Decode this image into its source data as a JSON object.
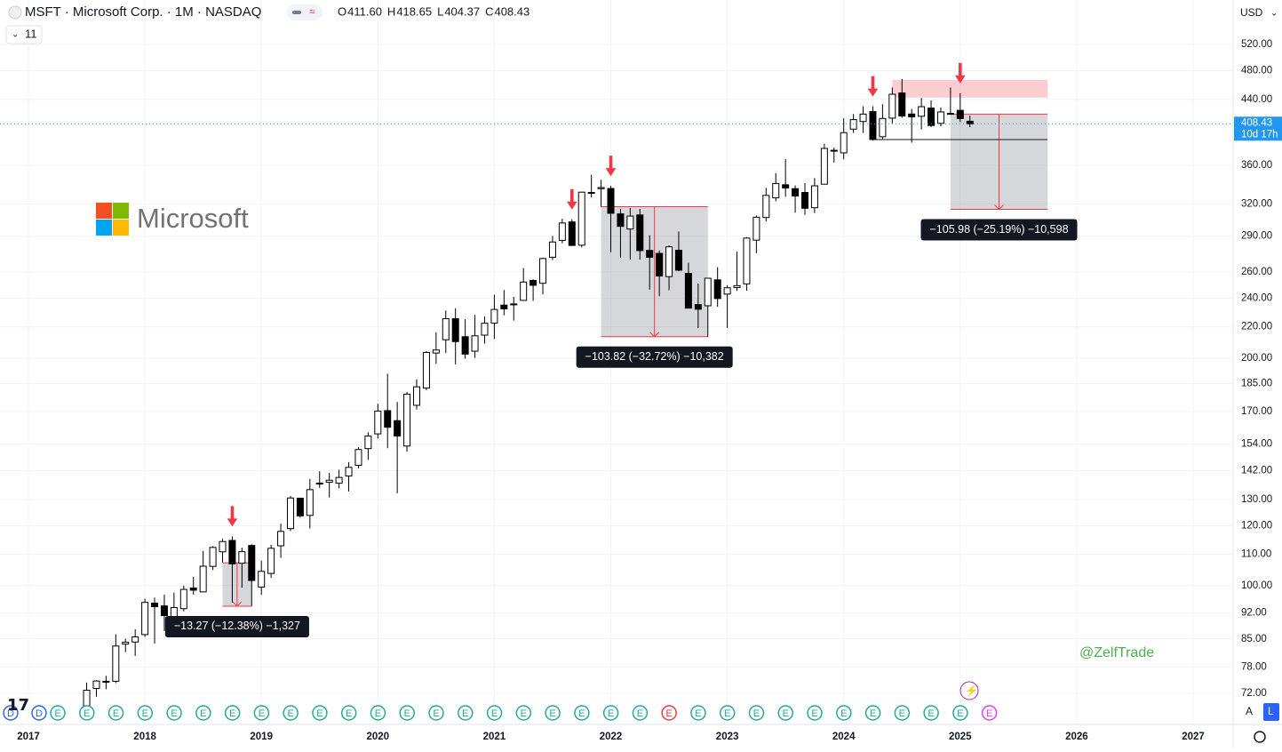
{
  "header": {
    "symbol": "MSFT · Microsoft Corp. · 1M · NASDAQ",
    "ohlc": [
      {
        "key": "O",
        "value": "411.60"
      },
      {
        "key": "H",
        "value": "418.65"
      },
      {
        "key": "L",
        "value": "404.37"
      },
      {
        "key": "C",
        "value": "408.43"
      }
    ],
    "indicators": "11",
    "currency": "USD"
  },
  "logo": "Microsoft",
  "watermark": "@ZelfTrade",
  "scale_buttons": [
    "A",
    "L"
  ],
  "chart_data": {
    "type": "candlestick",
    "log_scale": true,
    "x": [
      "2017-07",
      "2017-08",
      "2017-09",
      "2017-10",
      "2017-11",
      "2017-12",
      "2018-01",
      "2018-02",
      "2018-03",
      "2018-04",
      "2018-05",
      "2018-06",
      "2018-07",
      "2018-08",
      "2018-09",
      "2018-10",
      "2018-11",
      "2018-12",
      "2019-01",
      "2019-02",
      "2019-03",
      "2019-04",
      "2019-05",
      "2019-06",
      "2019-07",
      "2019-08",
      "2019-09",
      "2019-10",
      "2019-11",
      "2019-12",
      "2020-01",
      "2020-02",
      "2020-03",
      "2020-04",
      "2020-05",
      "2020-06",
      "2020-07",
      "2020-08",
      "2020-09",
      "2020-10",
      "2020-11",
      "2020-12",
      "2021-01",
      "2021-02",
      "2021-03",
      "2021-04",
      "2021-05",
      "2021-06",
      "2021-07",
      "2021-08",
      "2021-09",
      "2021-10",
      "2021-11",
      "2021-12",
      "2022-01",
      "2022-02",
      "2022-03",
      "2022-04",
      "2022-05",
      "2022-06",
      "2022-07",
      "2022-08",
      "2022-09",
      "2022-10",
      "2022-11",
      "2022-12",
      "2023-01",
      "2023-02",
      "2023-03",
      "2023-04",
      "2023-05",
      "2023-06",
      "2023-07",
      "2023-08",
      "2023-09",
      "2023-10",
      "2023-11",
      "2023-12",
      "2024-01",
      "2024-02",
      "2024-03",
      "2024-04",
      "2024-05",
      "2024-06",
      "2024-07",
      "2024-08",
      "2024-09",
      "2024-10",
      "2024-11",
      "2024-12",
      "2025-01",
      "2025-02"
    ],
    "open": [
      69.33,
      73.1,
      74.71,
      74.71,
      83.68,
      84.2,
      86.13,
      94.79,
      93.99,
      90.47,
      93.21,
      99.28,
      98.1,
      106.03,
      110.85,
      114.75,
      107.05,
      113.0,
      99.55,
      103.78,
      112.89,
      118.95,
      130.53,
      123.85,
      136.63,
      137,
      136.61,
      139.66,
      144.26,
      151.81,
      158.78,
      170.43,
      165.31,
      153,
      173.22,
      182.54,
      203.14,
      211.52,
      225.51,
      213.49,
      204.29,
      214.51,
      222.53,
      235.06,
      235.9,
      238.47,
      253.4,
      251.23,
      272,
      286.36,
      302.87,
      282.12,
      331.36,
      335.13,
      335.35,
      310.41,
      296.4,
      309.37,
      277.71,
      275.2,
      256.39,
      277.82,
      258.87,
      235.41,
      234.6,
      253.87,
      243.08,
      248,
      250.76,
      286.52,
      306.97,
      325.93,
      339.19,
      335.19,
      331.31,
      316.28,
      339.79,
      376.76,
      373.86,
      401.83,
      411.27,
      423.95,
      392.61,
      415.53,
      448.66,
      420.79,
      417.91,
      428.45,
      409.01,
      421.57,
      425.53,
      411.6
    ],
    "high": [
      74.42,
      74.96,
      75.97,
      86.2,
      85.06,
      87.5,
      96.07,
      96.4,
      97.24,
      97.9,
      99.99,
      102.69,
      111.15,
      112.78,
      115.29,
      116.18,
      112.24,
      113.42,
      107.9,
      113.24,
      120.82,
      131.37,
      130.65,
      138.4,
      141.68,
      140.94,
      142.37,
      145.67,
      152.5,
      159.55,
      174.05,
      190.7,
      175,
      180.4,
      187.51,
      204.4,
      216.38,
      231.15,
      232.86,
      225.21,
      228.12,
      227.18,
      242.64,
      246.13,
      241.05,
      263.19,
      254.35,
      271.65,
      290.15,
      305.84,
      305.32,
      332,
      349.67,
      344.3,
      338,
      315.12,
      315.95,
      315.11,
      290.88,
      277.69,
      282,
      294.18,
      267.45,
      251.04,
      255.33,
      263.92,
      249.83,
      276.76,
      289.27,
      308.93,
      335.94,
      351.47,
      366.78,
      338.54,
      340.86,
      346.2,
      384.3,
      379.79,
      415.32,
      420.82,
      430.82,
      430.82,
      433.6,
      456.17,
      468.35,
      427.46,
      441.85,
      438.5,
      429.32,
      456.16,
      448.38,
      418.65
    ],
    "low": [
      68.02,
      71.28,
      72.92,
      74.3,
      81.65,
      80.7,
      85.5,
      83.83,
      87.08,
      87.51,
      92.45,
      97.26,
      98.0,
      104.84,
      107.23,
      94.92,
      99.35,
      93.96,
      97.2,
      102.35,
      108.8,
      118.1,
      123.04,
      119.01,
      134.67,
      130.78,
      134.51,
      133.22,
      142.97,
      146.65,
      156.51,
      152,
      132.52,
      150.36,
      171.0,
      181.35,
      196.51,
      203.13,
      196.25,
      199.62,
      200.12,
      209.11,
      211.94,
      227.88,
      224.26,
      238.05,
      238.07,
      243,
      269.6,
      283.74,
      281.62,
      280.25,
      326.37,
      317.25,
      276.05,
      271.52,
      270,
      270,
      246.44,
      241.51,
      245.94,
      260.66,
      232.73,
      219.13,
      213.43,
      233.87,
      219.35,
      245.47,
      245.61,
      275.37,
      303.4,
      322.5,
      327,
      311.55,
      309.45,
      311.21,
      339.65,
      362.9,
      366.5,
      397.22,
      397.21,
      388.03,
      389.93,
      408.5,
      415.85,
      385.58,
      401.38,
      404.42,
      405.25,
      420.66,
      410.72,
      404.37
    ],
    "close": [
      72.7,
      74.77,
      74.49,
      83.18,
      84.17,
      85.54,
      95.01,
      93.77,
      91.27,
      93.52,
      98.84,
      98.61,
      106.08,
      112.33,
      114.37,
      106.81,
      110.89,
      101.57,
      104.43,
      112.03,
      117.94,
      130.6,
      123.68,
      133.96,
      136.27,
      137.86,
      139.03,
      143.37,
      151.38,
      157.7,
      170.23,
      162.01,
      157.71,
      179.21,
      183.25,
      203.51,
      205.01,
      225.53,
      210.33,
      202.47,
      214.07,
      222.42,
      231.96,
      232.38,
      235.77,
      252.18,
      249.68,
      270.9,
      284.91,
      301.88,
      281.92,
      331.62,
      330.59,
      336.32,
      310.98,
      298.79,
      308.31,
      277.52,
      271.87,
      256.83,
      280.74,
      261.47,
      232.9,
      232.13,
      255.14,
      239.82,
      247.81,
      249.42,
      288.3,
      307.26,
      328.39,
      340.54,
      335.92,
      327.76,
      315.75,
      338.11,
      378.91,
      376.04,
      397.58,
      413.64,
      420.72,
      389.33,
      415.13,
      446.95,
      418.35,
      417.14,
      430.3,
      406.35,
      423.46,
      421.5,
      415.06,
      408.43
    ],
    "ylim": [
      65.5,
      595.6
    ],
    "yticks": [
      {
        "value": 72,
        "label": "72.00"
      },
      {
        "value": 78,
        "label": "78.00"
      },
      {
        "value": 85,
        "label": "85.00"
      },
      {
        "value": 92,
        "label": "92.00"
      },
      {
        "value": 100,
        "label": "100.00"
      },
      {
        "value": 110,
        "label": "110.00"
      },
      {
        "value": 120,
        "label": "120.00"
      },
      {
        "value": 130,
        "label": "130.00"
      },
      {
        "value": 142,
        "label": "142.00"
      },
      {
        "value": 154,
        "label": "154.00"
      },
      {
        "value": 170,
        "label": "170.00"
      },
      {
        "value": 185,
        "label": "185.00"
      },
      {
        "value": 200,
        "label": "200.00"
      },
      {
        "value": 220,
        "label": "220.00"
      },
      {
        "value": 240,
        "label": "240.00"
      },
      {
        "value": 260,
        "label": "260.00"
      },
      {
        "value": 290,
        "label": "290.00"
      },
      {
        "value": 320,
        "label": "320.00"
      },
      {
        "value": 360,
        "label": "360.00"
      },
      {
        "value": 440,
        "label": "440.00"
      },
      {
        "value": 480,
        "label": "480.00"
      },
      {
        "value": 520,
        "label": "520.00"
      }
    ],
    "xticks": [
      "2017",
      "2018",
      "2019",
      "2020",
      "2021",
      "2022",
      "2023",
      "2024",
      "2025",
      "2026",
      "2027"
    ],
    "last_price": {
      "value": 408.43,
      "label": "408.43",
      "countdown": "10d 17h"
    },
    "signals": [
      "2018-10",
      "2021-09",
      "2022-01",
      "2024-04",
      "2025-01"
    ],
    "measures": [
      {
        "start": "2018-09",
        "end": "2018-12",
        "top": 107.19,
        "bottom": 93.92,
        "label": "−13.27 (−12.38%) −1,327"
      },
      {
        "start": "2021-12",
        "end": "2022-11",
        "top": 317.3,
        "bottom": 213.5,
        "label": "−103.82 (−32.72%) −10,382"
      },
      {
        "start": "2024-12",
        "end": "2025-10",
        "top": 420.72,
        "bottom": 314.74,
        "label": "−105.98 (−25.19%) −10,598"
      }
    ],
    "zone": {
      "start": "2024-06",
      "end": "2025-10",
      "top": 467,
      "bottom": 442.4
    },
    "level": {
      "start": "2024-04",
      "end": "2025-10",
      "value": 389.33
    }
  },
  "events": [
    {
      "label": "D",
      "color": "#2962ff"
    },
    {
      "label": "D",
      "color": "#2962ff"
    },
    {
      "label": "E",
      "color": "#22ab94"
    },
    {
      "label": "E",
      "color": "#22ab94"
    },
    {
      "label": "E",
      "color": "#22ab94"
    },
    {
      "label": "E",
      "color": "#22ab94"
    },
    {
      "label": "E",
      "color": "#22ab94"
    },
    {
      "label": "E",
      "color": "#22ab94"
    },
    {
      "label": "E",
      "color": "#22ab94"
    },
    {
      "label": "E",
      "color": "#22ab94"
    },
    {
      "label": "E",
      "color": "#22ab94"
    },
    {
      "label": "E",
      "color": "#22ab94"
    },
    {
      "label": "E",
      "color": "#22ab94"
    },
    {
      "label": "E",
      "color": "#22ab94"
    },
    {
      "label": "E",
      "color": "#22ab94"
    },
    {
      "label": "E",
      "color": "#22ab94"
    },
    {
      "label": "E",
      "color": "#22ab94"
    },
    {
      "label": "E",
      "color": "#22ab94"
    },
    {
      "label": "E",
      "color": "#22ab94"
    },
    {
      "label": "E",
      "color": "#22ab94"
    },
    {
      "label": "E",
      "color": "#22ab94"
    },
    {
      "label": "E",
      "color": "#22ab94"
    },
    {
      "label": "E",
      "color": "#22ab94"
    },
    {
      "label": "E",
      "color": "#f23645"
    },
    {
      "label": "E",
      "color": "#22ab94"
    },
    {
      "label": "E",
      "color": "#22ab94"
    },
    {
      "label": "E",
      "color": "#22ab94"
    },
    {
      "label": "E",
      "color": "#22ab94"
    },
    {
      "label": "E",
      "color": "#22ab94"
    },
    {
      "label": "E",
      "color": "#22ab94"
    },
    {
      "label": "E",
      "color": "#22ab94"
    },
    {
      "label": "E",
      "color": "#22ab94"
    },
    {
      "label": "E",
      "color": "#22ab94"
    },
    {
      "label": "E",
      "color": "#22ab94"
    },
    {
      "label": "E",
      "color": "#e040fb"
    }
  ]
}
